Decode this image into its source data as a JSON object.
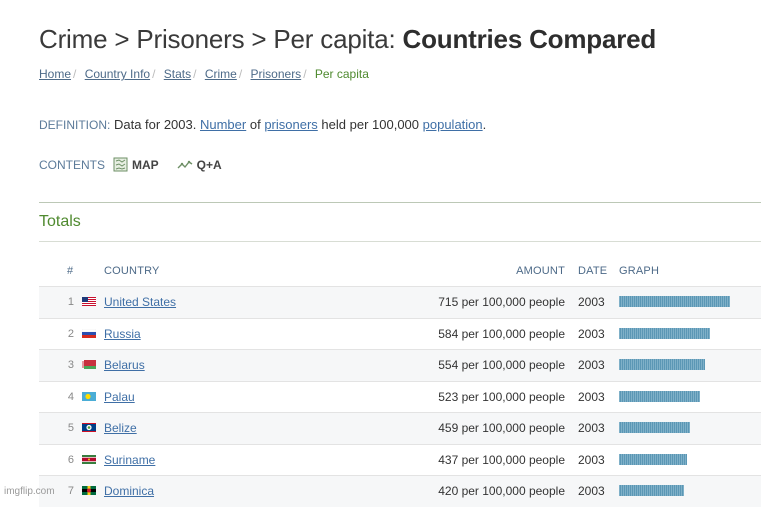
{
  "page": {
    "title_prefix": "Crime > Prisoners > Per capita:",
    "title_bold": "Countries Compared"
  },
  "breadcrumb": {
    "items": [
      "Home",
      "Country Info",
      "Stats",
      "Crime",
      "Prisoners"
    ],
    "current": "Per capita"
  },
  "definition": {
    "label": "DEFINITION:",
    "text_1": "Data for 2003.",
    "link_1": "Number",
    "text_2": "of",
    "link_2": "prisoners",
    "text_3": "held per 100,000",
    "link_3": "population",
    "text_4": "."
  },
  "contents": {
    "label": "CONTENTS",
    "map": "MAP",
    "qa": "Q+A"
  },
  "section": {
    "title": "Totals"
  },
  "table": {
    "headers": {
      "rank": "#",
      "country": "COUNTRY",
      "amount": "AMOUNT",
      "date": "DATE",
      "graph": "GRAPH"
    },
    "rows": [
      {
        "rank": "1",
        "country": "United States",
        "amount": "715 per 100,000 people",
        "date": "2003",
        "value": 715,
        "flag": "us-flag-icon"
      },
      {
        "rank": "2",
        "country": "Russia",
        "amount": "584 per 100,000 people",
        "date": "2003",
        "value": 584,
        "flag": "russia-flag-icon"
      },
      {
        "rank": "3",
        "country": "Belarus",
        "amount": "554 per 100,000 people",
        "date": "2003",
        "value": 554,
        "flag": "belarus-flag-icon"
      },
      {
        "rank": "4",
        "country": "Palau",
        "amount": "523 per 100,000 people",
        "date": "2003",
        "value": 523,
        "flag": "palau-flag-icon"
      },
      {
        "rank": "5",
        "country": "Belize",
        "amount": "459 per 100,000 people",
        "date": "2003",
        "value": 459,
        "flag": "belize-flag-icon"
      },
      {
        "rank": "6",
        "country": "Suriname",
        "amount": "437 per 100,000 people",
        "date": "2003",
        "value": 437,
        "flag": "suriname-flag-icon"
      },
      {
        "rank": "7",
        "country": "Dominica",
        "amount": "420 per 100,000 people",
        "date": "2003",
        "value": 420,
        "flag": "dominica-flag-icon"
      }
    ]
  },
  "watermark": "imgflip.com",
  "colors": {
    "accent_green": "#4f8a2f",
    "link_blue": "#3f6fa6",
    "bar_blue": "#5b97b5"
  }
}
